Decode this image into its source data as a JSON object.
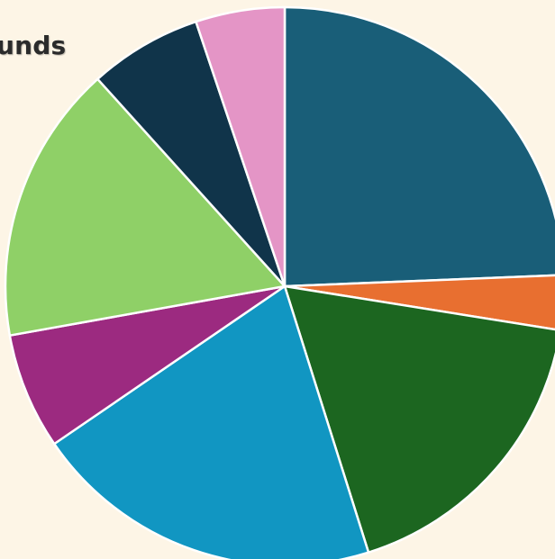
{
  "chart_data": {
    "type": "pie",
    "title": "unds",
    "start_angle_deg": 0,
    "direction": "clockwise",
    "slice_border_color": "#ffffff",
    "background_color": "#fdf5e6",
    "slices": [
      {
        "value": 24.6,
        "color": "#195e78"
      },
      {
        "value": 3.2,
        "color": "#e86f30"
      },
      {
        "value": 17.8,
        "color": "#1c6620"
      },
      {
        "value": 20.5,
        "color": "#1196c2"
      },
      {
        "value": 6.8,
        "color": "#9c2a80"
      },
      {
        "value": 16.3,
        "color": "#8fd067"
      },
      {
        "value": 6.6,
        "color": "#10344a"
      },
      {
        "value": 5.2,
        "color": "#e495c6"
      }
    ]
  }
}
